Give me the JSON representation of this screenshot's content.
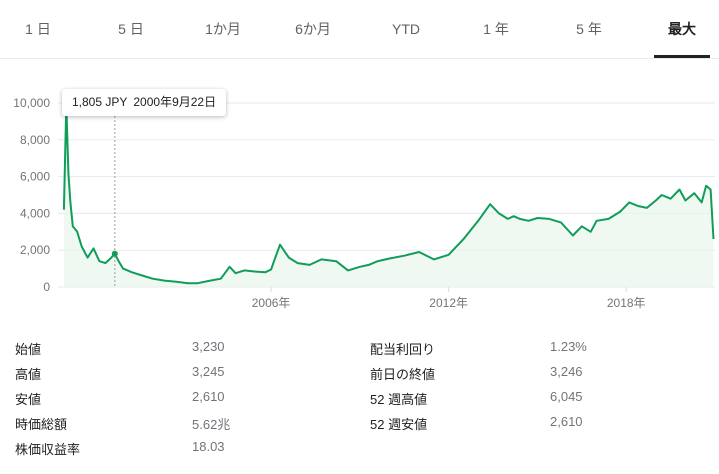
{
  "tabs": [
    {
      "label": "1 日",
      "active": false
    },
    {
      "label": "5 日",
      "active": false
    },
    {
      "label": "1か月",
      "active": false
    },
    {
      "label": "6か月",
      "active": false
    },
    {
      "label": "YTD",
      "active": false
    },
    {
      "label": "1 年",
      "active": false
    },
    {
      "label": "5 年",
      "active": false
    },
    {
      "label": "最大",
      "active": true
    }
  ],
  "tooltip": {
    "price": "1,805 JPY",
    "date": "2000年9月22日"
  },
  "colors": {
    "line": "#0f9d58",
    "area": "#e6f4ea",
    "grid": "#e8eaed",
    "text_secondary": "#70757a"
  },
  "chart_data": {
    "type": "line",
    "y_ticks": [
      "10,000",
      "8,000",
      "6,000",
      "4,000",
      "2,000",
      "0"
    ],
    "x_ticks": [
      "2006年",
      "2012年",
      "2018年"
    ],
    "ylim": [
      0,
      10000
    ],
    "xlim": [
      1998.8,
      2021.0
    ],
    "hover_x": 2000.72,
    "series": [
      {
        "x": [
          1999.0,
          1999.08,
          1999.15,
          1999.22,
          1999.3,
          1999.45,
          1999.6,
          1999.8,
          2000.0,
          2000.2,
          2000.4,
          2000.6,
          2000.72,
          2000.85,
          2001.0,
          2001.3,
          2001.7,
          2002.0,
          2002.4,
          2002.8,
          2003.2,
          2003.5,
          2003.9,
          2004.3,
          2004.6,
          2004.8,
          2005.1,
          2005.4,
          2005.8,
          2006.0,
          2006.1,
          2006.3,
          2006.6,
          2006.9,
          2007.3,
          2007.7,
          2008.2,
          2008.6,
          2009.0,
          2009.3,
          2009.6,
          2010.0,
          2010.5,
          2011.0,
          2011.5,
          2012.0,
          2012.5,
          2013.0,
          2013.4,
          2013.7,
          2014.0,
          2014.2,
          2014.4,
          2014.7,
          2015.0,
          2015.4,
          2015.8,
          2016.2,
          2016.5,
          2016.8,
          2017.0,
          2017.4,
          2017.8,
          2018.1,
          2018.4,
          2018.7,
          2019.0,
          2019.2,
          2019.5,
          2019.8,
          2020.0,
          2020.3,
          2020.55,
          2020.7,
          2020.85,
          2020.95
        ],
        "y": [
          4200,
          9900,
          6200,
          4600,
          3300,
          3000,
          2200,
          1600,
          2100,
          1400,
          1300,
          1600,
          1805,
          1400,
          1000,
          800,
          600,
          450,
          350,
          280,
          200,
          200,
          330,
          450,
          1100,
          750,
          900,
          850,
          800,
          950,
          1400,
          2300,
          1600,
          1300,
          1200,
          1500,
          1400,
          900,
          1100,
          1200,
          1400,
          1550,
          1700,
          1900,
          1500,
          1750,
          2600,
          3600,
          4500,
          4000,
          3700,
          3850,
          3700,
          3600,
          3750,
          3700,
          3500,
          2800,
          3300,
          3000,
          3600,
          3700,
          4100,
          4600,
          4400,
          4300,
          4700,
          5000,
          4800,
          5300,
          4700,
          5100,
          4600,
          5500,
          5300,
          2610
        ]
      }
    ]
  },
  "stats": {
    "left": [
      {
        "label": "始値",
        "value": "3,230"
      },
      {
        "label": "高値",
        "value": "3,245"
      },
      {
        "label": "安値",
        "value": "2,610"
      },
      {
        "label": "時価総額",
        "value": "5.62兆"
      },
      {
        "label": "株価収益率",
        "value": "18.03"
      }
    ],
    "right": [
      {
        "label": "配当利回り",
        "value": "1.23%"
      },
      {
        "label": "前日の終値",
        "value": "3,246"
      },
      {
        "label": "52 週高値",
        "value": "6,045"
      },
      {
        "label": "52 週安値",
        "value": "2,610"
      }
    ]
  }
}
